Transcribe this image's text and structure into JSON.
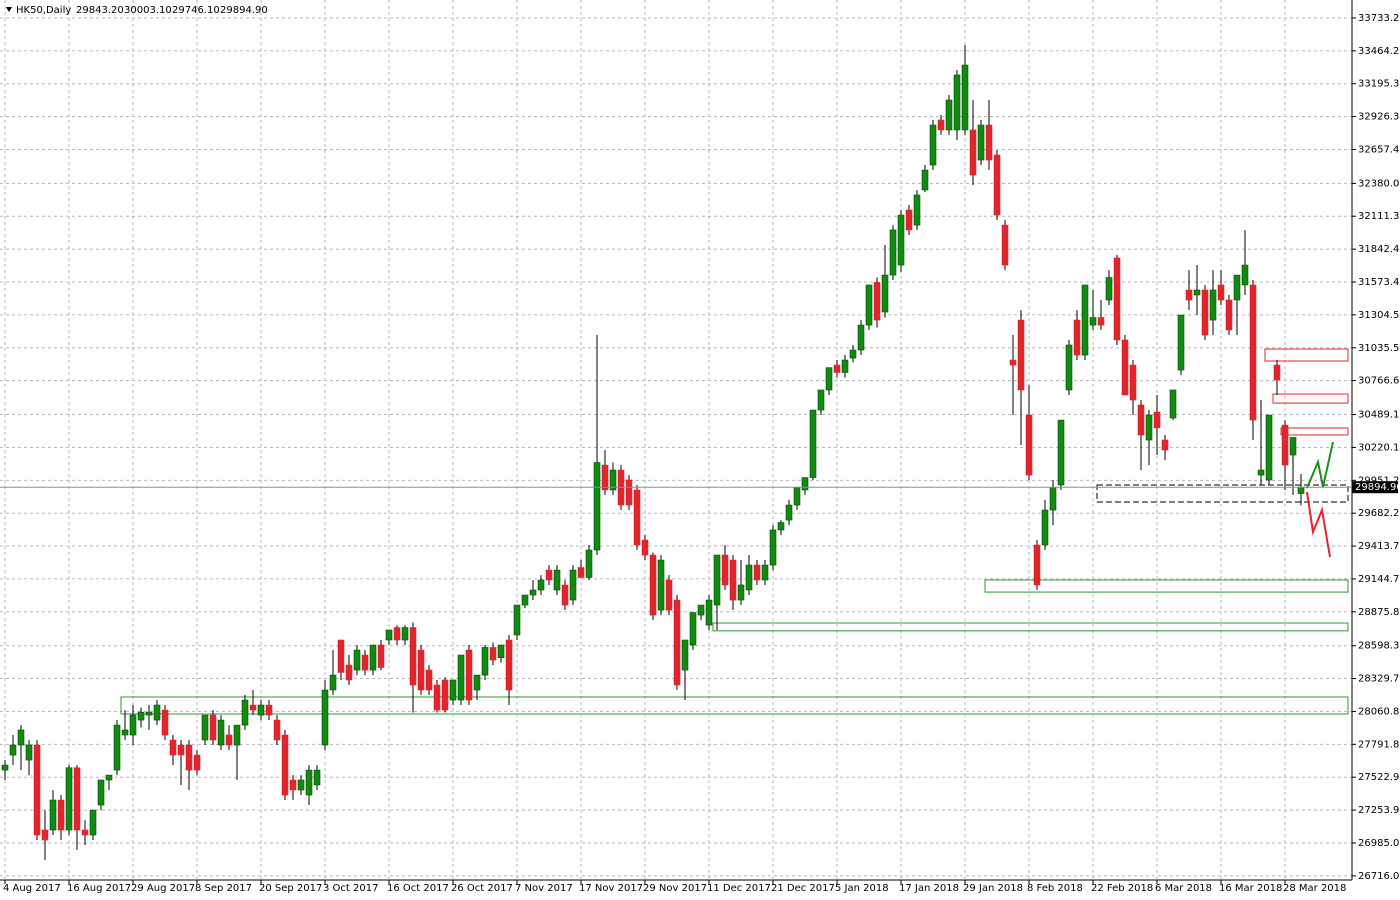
{
  "chart_data": {
    "type": "candlestick",
    "title": "HK50,Daily",
    "ohlc_labels": [
      "29843.20",
      "30003.10",
      "29746.10",
      "29894.90"
    ],
    "up_color": "#118a11",
    "down_color": "#e0262c",
    "grid": true,
    "ylim": [
      26682,
      33880
    ],
    "yticks": [
      {
        "value": 33733.2,
        "label": "33733.20"
      },
      {
        "value": 33464.25,
        "label": "33464.25"
      },
      {
        "value": 33195.35,
        "label": "33195.35"
      },
      {
        "value": 32926.35,
        "label": "32926.35"
      },
      {
        "value": 32657.4,
        "label": "32657.40"
      },
      {
        "value": 32380,
        "label": "32380.00"
      },
      {
        "value": 32111.35,
        "label": "32111.35"
      },
      {
        "value": 31842.4,
        "label": "31842.40"
      },
      {
        "value": 31573.45,
        "label": "31573.45"
      },
      {
        "value": 31304.5,
        "label": "31304.50"
      },
      {
        "value": 31035.55,
        "label": "31035.55"
      },
      {
        "value": 30766.6,
        "label": "30766.60"
      },
      {
        "value": 30489.15,
        "label": "30489.15"
      },
      {
        "value": 30220.15,
        "label": "30220.15"
      },
      {
        "value": 29951.2,
        "label": "29951.20"
      },
      {
        "value": 29682.25,
        "label": "29682.25"
      },
      {
        "value": 29413.7,
        "label": "29413.70"
      },
      {
        "value": 29144.75,
        "label": "29144.75"
      },
      {
        "value": 28875.8,
        "label": "28875.80"
      },
      {
        "value": 28598.3,
        "label": "28598.30"
      },
      {
        "value": 28329.75,
        "label": "28329.75"
      },
      {
        "value": 28060.8,
        "label": "28060.80"
      },
      {
        "value": 27791.85,
        "label": "27791.85"
      },
      {
        "value": 27522.9,
        "label": "27522.90"
      },
      {
        "value": 27253.95,
        "label": "27253.95"
      },
      {
        "value": 26985,
        "label": "26985.00"
      },
      {
        "value": 26716.05,
        "label": "26716.05"
      }
    ],
    "categories": [
      "4 Aug 2017",
      null,
      null,
      null,
      null,
      null,
      null,
      null,
      "16 Aug 2017",
      null,
      null,
      null,
      null,
      null,
      null,
      null,
      "29 Aug 2017",
      null,
      null,
      null,
      null,
      null,
      null,
      null,
      "8 Sep 2017",
      null,
      null,
      null,
      null,
      null,
      null,
      null,
      "20 Sep 2017",
      null,
      null,
      null,
      null,
      null,
      null,
      null,
      "3 Oct 2017",
      null,
      null,
      null,
      null,
      null,
      null,
      null,
      "16 Oct 2017",
      null,
      null,
      null,
      null,
      null,
      null,
      null,
      "26 Oct 2017",
      null,
      null,
      null,
      null,
      null,
      null,
      null,
      "7 Nov 2017",
      null,
      null,
      null,
      null,
      null,
      null,
      null,
      "17 Nov 2017",
      null,
      null,
      null,
      null,
      null,
      null,
      null,
      "29 Nov 2017",
      null,
      null,
      null,
      null,
      null,
      null,
      null,
      "11 Dec 2017",
      null,
      null,
      null,
      null,
      null,
      null,
      null,
      "21 Dec 2017",
      null,
      null,
      null,
      null,
      null,
      null,
      null,
      "5 Jan 2018",
      null,
      null,
      null,
      null,
      null,
      null,
      null,
      "17 Jan 2018",
      null,
      null,
      null,
      null,
      null,
      null,
      null,
      "29 Jan 2018",
      null,
      null,
      null,
      null,
      null,
      null,
      null,
      "8 Feb 2018",
      null,
      null,
      null,
      null,
      null,
      null,
      null,
      "22 Feb 2018",
      null,
      null,
      null,
      null,
      null,
      null,
      null,
      "6 Mar 2018",
      null,
      null,
      null,
      null,
      null,
      null,
      null,
      "16 Mar 2018",
      null,
      null,
      null,
      null,
      null,
      null,
      null,
      "28 Mar 2018",
      null,
      null
    ],
    "ohlc": [
      [
        27581,
        27663,
        27500,
        27622
      ],
      [
        27704,
        27868,
        27622,
        27786
      ],
      [
        27786,
        27949,
        27581,
        27909
      ],
      [
        27663,
        27827,
        27540,
        27786
      ],
      [
        27786,
        27827,
        27009,
        27050
      ],
      [
        27091,
        27254,
        26845,
        27009
      ],
      [
        27091,
        27418,
        27050,
        27336
      ],
      [
        27336,
        27377,
        27009,
        27091
      ],
      [
        27091,
        27622,
        27050,
        27600
      ],
      [
        27600,
        27622,
        26927,
        27091
      ],
      [
        27091,
        27172,
        26968,
        27050
      ],
      [
        27050,
        27254,
        27009,
        27254
      ],
      [
        27295,
        27500,
        27254,
        27500
      ],
      [
        27500,
        27540,
        27418,
        27540
      ],
      [
        27581,
        27990,
        27540,
        27949
      ],
      [
        27868,
        28072,
        27827,
        27909
      ],
      [
        27868,
        28113,
        27786,
        28031
      ],
      [
        27990,
        28092,
        27929,
        28055
      ],
      [
        28031,
        28113,
        27909,
        28055
      ],
      [
        27990,
        28154,
        27949,
        28113
      ],
      [
        28072,
        28113,
        27827,
        27868
      ],
      [
        27827,
        27868,
        27622,
        27704
      ],
      [
        27786,
        27827,
        27459,
        27704
      ],
      [
        27786,
        27827,
        27418,
        27581
      ],
      [
        27704,
        27745,
        27540,
        27581
      ],
      [
        27827,
        28031,
        27786,
        28031
      ],
      [
        28031,
        28072,
        27786,
        27827
      ],
      [
        27786,
        28031,
        27745,
        27990
      ],
      [
        27868,
        27949,
        27745,
        27786
      ],
      [
        27786,
        27949,
        27500,
        27949
      ],
      [
        27949,
        28195,
        27909,
        28154
      ],
      [
        28113,
        28236,
        28031,
        28072
      ],
      [
        28031,
        28154,
        27990,
        28113
      ],
      [
        28113,
        28154,
        27990,
        28031
      ],
      [
        27990,
        28031,
        27786,
        27827
      ],
      [
        27868,
        27909,
        27336,
        27377
      ],
      [
        27500,
        27540,
        27336,
        27418
      ],
      [
        27418,
        27540,
        27377,
        27500
      ],
      [
        27377,
        27622,
        27295,
        27581
      ],
      [
        27459,
        27622,
        27418,
        27581
      ],
      [
        27786,
        28318,
        27745,
        28236
      ],
      [
        28236,
        28563,
        28195,
        28358
      ],
      [
        28645,
        28645,
        28318,
        28380
      ],
      [
        28440,
        28522,
        28277,
        28318
      ],
      [
        28399,
        28604,
        28358,
        28563
      ],
      [
        28522,
        28563,
        28358,
        28399
      ],
      [
        28399,
        28604,
        28358,
        28604
      ],
      [
        28604,
        28645,
        28399,
        28420
      ],
      [
        28645,
        28727,
        28604,
        28727
      ],
      [
        28747,
        28767,
        28604,
        28645
      ],
      [
        28645,
        28767,
        28604,
        28747
      ],
      [
        28747,
        28788,
        28052,
        28277
      ],
      [
        28563,
        28604,
        28195,
        28236
      ],
      [
        28399,
        28440,
        28195,
        28236
      ],
      [
        28277,
        28318,
        28052,
        28072
      ],
      [
        28318,
        28340,
        28052,
        28072
      ],
      [
        28154,
        28318,
        28113,
        28318
      ],
      [
        28154,
        28522,
        28113,
        28522
      ],
      [
        28563,
        28604,
        28113,
        28154
      ],
      [
        28236,
        28358,
        28154,
        28358
      ],
      [
        28358,
        28604,
        28318,
        28584
      ],
      [
        28584,
        28625,
        28440,
        28481
      ],
      [
        28500,
        28604,
        28460,
        28604
      ],
      [
        28645,
        28686,
        28113,
        28236
      ],
      [
        28686,
        28931,
        28645,
        28931
      ],
      [
        28931,
        29013,
        28906,
        29013
      ],
      [
        29013,
        29136,
        28972,
        29054
      ],
      [
        29054,
        29176,
        29013,
        29136
      ],
      [
        29217,
        29258,
        29095,
        29136
      ],
      [
        29054,
        29258,
        29013,
        29217
      ],
      [
        29095,
        29136,
        28890,
        28931
      ],
      [
        28972,
        29258,
        28931,
        29217
      ],
      [
        29238,
        29299,
        29156,
        29156
      ],
      [
        29156,
        29422,
        29136,
        29381
      ],
      [
        29381,
        31140,
        29340,
        30097
      ],
      [
        30076,
        30199,
        29831,
        29872
      ],
      [
        29872,
        30097,
        29831,
        30035
      ],
      [
        30035,
        30076,
        29708,
        29749
      ],
      [
        29954,
        29994,
        29708,
        29749
      ],
      [
        29872,
        29913,
        29381,
        29422
      ],
      [
        29463,
        29504,
        29299,
        29340
      ],
      [
        29340,
        29360,
        28808,
        28849
      ],
      [
        28890,
        29340,
        28849,
        29299
      ],
      [
        29136,
        29176,
        28849,
        28890
      ],
      [
        28972,
        29013,
        28236,
        28277
      ],
      [
        28399,
        28645,
        28154,
        28645
      ],
      [
        28604,
        28870,
        28563,
        28870
      ],
      [
        28849,
        28931,
        28808,
        28931
      ],
      [
        28767,
        29013,
        28727,
        28972
      ],
      [
        28931,
        29340,
        28727,
        29340
      ],
      [
        29340,
        29422,
        29054,
        29095
      ],
      [
        29299,
        29340,
        28890,
        28972
      ],
      [
        28972,
        29299,
        28931,
        29095
      ],
      [
        29054,
        29340,
        29013,
        29258
      ],
      [
        29258,
        29299,
        29095,
        29136
      ],
      [
        29136,
        29299,
        29095,
        29258
      ],
      [
        29258,
        29585,
        29217,
        29545
      ],
      [
        29545,
        29626,
        29504,
        29606
      ],
      [
        29626,
        29790,
        29585,
        29749
      ],
      [
        29749,
        29892,
        29708,
        29892
      ],
      [
        29872,
        29974,
        29831,
        29974
      ],
      [
        29974,
        30526,
        29954,
        30526
      ],
      [
        30526,
        30690,
        30485,
        30690
      ],
      [
        30690,
        30873,
        30649,
        30873
      ],
      [
        30894,
        30935,
        30792,
        30833
      ],
      [
        30833,
        30976,
        30792,
        30935
      ],
      [
        30951,
        31058,
        30915,
        31017
      ],
      [
        31017,
        31262,
        30976,
        31221
      ],
      [
        31221,
        31549,
        31181,
        31549
      ],
      [
        31570,
        31610,
        31201,
        31262
      ],
      [
        31328,
        31876,
        31283,
        31630
      ],
      [
        31630,
        32039,
        31590,
        31999
      ],
      [
        31712,
        32162,
        31655,
        32121
      ],
      [
        32162,
        32203,
        31958,
        31999
      ],
      [
        32039,
        32326,
        31999,
        32285
      ],
      [
        32326,
        32530,
        32309,
        32489
      ],
      [
        32530,
        32898,
        32489,
        32857
      ],
      [
        32898,
        32939,
        32776,
        32817
      ],
      [
        32817,
        33103,
        32776,
        33062
      ],
      [
        32817,
        33307,
        32735,
        33267
      ],
      [
        32817,
        33512,
        32776,
        33348
      ],
      [
        32817,
        33062,
        32367,
        32448
      ],
      [
        32571,
        32898,
        32530,
        32857
      ],
      [
        32857,
        33062,
        32489,
        32571
      ],
      [
        32612,
        32653,
        32080,
        32121
      ],
      [
        32039,
        32080,
        31671,
        31712
      ],
      [
        30935,
        31140,
        30485,
        30894
      ],
      [
        31262,
        31344,
        30240,
        30690
      ],
      [
        30485,
        30731,
        29954,
        29994
      ],
      [
        29422,
        29463,
        29054,
        29095
      ],
      [
        29422,
        29790,
        29381,
        29708
      ],
      [
        29708,
        29954,
        29585,
        29892
      ],
      [
        29913,
        30444,
        29872,
        30444
      ],
      [
        30690,
        31099,
        30649,
        31058
      ],
      [
        31262,
        31344,
        30935,
        30976
      ],
      [
        30976,
        31549,
        30935,
        31549
      ],
      [
        31221,
        31508,
        31181,
        31283
      ],
      [
        31283,
        31426,
        31181,
        31221
      ],
      [
        31426,
        31671,
        31385,
        31610
      ],
      [
        31770,
        31794,
        31058,
        31099
      ],
      [
        31099,
        31140,
        30649,
        30649
      ],
      [
        30894,
        30935,
        30485,
        30608
      ],
      [
        30567,
        30608,
        30035,
        30322
      ],
      [
        30281,
        30526,
        30076,
        30485
      ],
      [
        30510,
        30649,
        30158,
        30380
      ],
      [
        30281,
        30322,
        30117,
        30199
      ],
      [
        30461,
        30690,
        30444,
        30690
      ],
      [
        30853,
        31303,
        30812,
        31303
      ],
      [
        31508,
        31671,
        31344,
        31426
      ],
      [
        31467,
        31712,
        31303,
        31508
      ],
      [
        31508,
        31549,
        31099,
        31140
      ],
      [
        31262,
        31671,
        31140,
        31508
      ],
      [
        31549,
        31671,
        31385,
        31426
      ],
      [
        31426,
        31467,
        31140,
        31181
      ],
      [
        31426,
        31630,
        31140,
        31630
      ],
      [
        31549,
        31999,
        31467,
        31712
      ],
      [
        31549,
        31590,
        30281,
        30444
      ],
      [
        29994,
        30608,
        29913,
        30035
      ],
      [
        29954,
        30485,
        29913,
        30485
      ],
      [
        30894,
        30935,
        30649,
        30772
      ],
      [
        30403,
        30444,
        29872,
        30076
      ],
      [
        30158,
        30302,
        29831,
        30302
      ],
      [
        29843.2,
        30003.1,
        29746.1,
        29894.9
      ]
    ],
    "zones": [
      {
        "color": "#2f9a2f",
        "start": 15,
        "from": 28040,
        "to": 28179
      },
      {
        "color": "#2f9a2f",
        "start": 89,
        "from": 28720,
        "to": 28784
      },
      {
        "color": "#2f9a2f",
        "start": 123,
        "from": 29037,
        "to": 29136
      },
      {
        "color": "#e0262c",
        "start": 158,
        "from": 30927,
        "to": 31025
      },
      {
        "color": "#e0262c",
        "start": 159,
        "from": 30583,
        "to": 30657
      },
      {
        "color": "#e0262c",
        "start": 160,
        "from": 30322,
        "to": 30379
      },
      {
        "color": "#000000",
        "start": 137,
        "from": 29774,
        "to": 29913
      }
    ]
  }
}
